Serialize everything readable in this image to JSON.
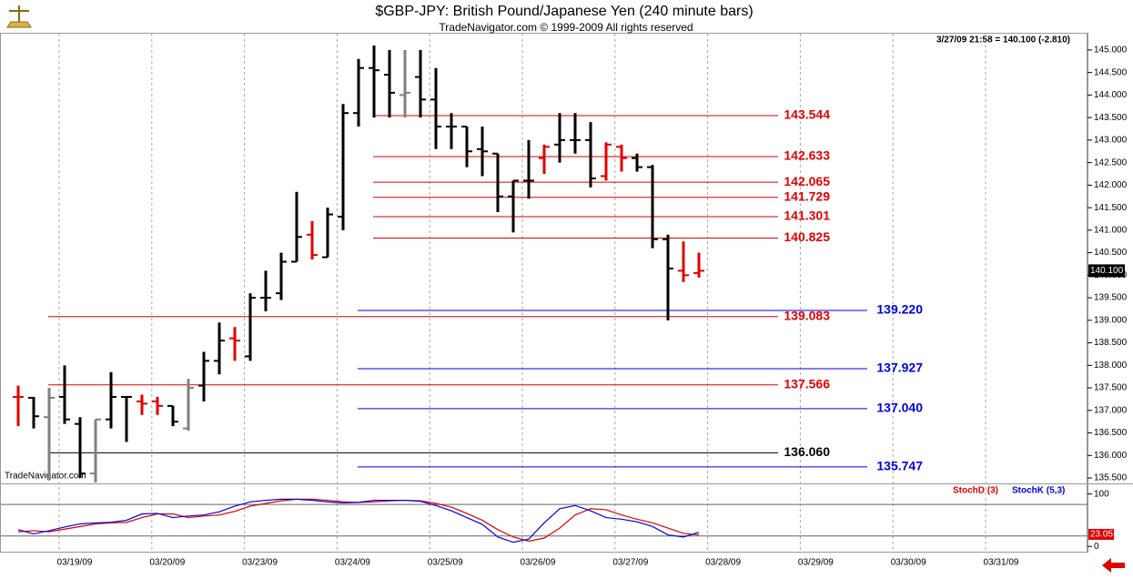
{
  "chart_data": {
    "type": "ohlc",
    "title": "$GBP-JPY:  British Pound/Japanese Yen  (240 minute bars)",
    "subtitle": "TradeNavigator.com © 1999-2009 All rights reserved",
    "info": "3/27/09 21:58 = 140.100 (-2.810)",
    "watermark": "TradeNavigator.com",
    "last_price": {
      "value": 140.1,
      "label": "140.100"
    },
    "categories": [
      "03/19/09",
      "03/20/09",
      "03/23/09",
      "03/24/09",
      "03/25/09",
      "03/26/09",
      "03/27/09",
      "03/28/09",
      "03/29/09",
      "03/30/09",
      "03/31/09"
    ],
    "ylim": [
      135.4,
      145.2
    ],
    "yticks": [
      {
        "value": 135.5,
        "label": "135.500"
      },
      {
        "value": 136,
        "label": "136.000"
      },
      {
        "value": 136.5,
        "label": "136.500"
      },
      {
        "value": 137,
        "label": "137.000"
      },
      {
        "value": 137.5,
        "label": "137.500"
      },
      {
        "value": 138,
        "label": "138.000"
      },
      {
        "value": 138.5,
        "label": "138.500"
      },
      {
        "value": 139,
        "label": "139.000"
      },
      {
        "value": 139.5,
        "label": "139.500"
      },
      {
        "value": 140,
        "label": "140.000"
      },
      {
        "value": 140.5,
        "label": "140.500"
      },
      {
        "value": 141,
        "label": "141.000"
      },
      {
        "value": 141.5,
        "label": "141.500"
      },
      {
        "value": 142,
        "label": "142.000"
      },
      {
        "value": 142.5,
        "label": "142.500"
      },
      {
        "value": 143,
        "label": "143.000"
      },
      {
        "value": 143.5,
        "label": "143.500"
      },
      {
        "value": 144,
        "label": "144.000"
      },
      {
        "value": 144.5,
        "label": "144.500"
      },
      {
        "value": 145,
        "label": "145.000"
      }
    ],
    "bars": {
      "open": [
        137.3,
        137.28,
        136.85,
        137.3,
        136.7,
        135.6,
        136.8,
        137.3,
        137.2,
        137.2,
        137.1,
        136.6,
        137.55,
        138.1,
        138.6,
        138.2,
        139.5,
        139.6,
        140.3,
        140.9,
        140.4,
        141.3,
        143.6,
        144.6,
        144.45,
        144.0,
        144.4,
        143.9,
        143.3,
        143.3,
        142.8,
        142.7,
        141.75,
        142.1,
        142.6,
        142.9,
        143.0,
        143.0,
        142.2,
        142.85,
        142.6,
        142.4,
        140.8,
        140.1,
        140.05
      ],
      "high": [
        137.55,
        137.3,
        137.5,
        138.0,
        136.85,
        136.8,
        137.85,
        137.3,
        137.35,
        137.3,
        137.1,
        137.7,
        138.3,
        138.95,
        138.85,
        139.6,
        140.1,
        140.5,
        141.85,
        141.2,
        141.5,
        143.8,
        144.8,
        145.1,
        145.0,
        145.0,
        145.0,
        144.6,
        143.6,
        143.3,
        143.3,
        142.7,
        142.1,
        143.0,
        142.9,
        143.6,
        143.6,
        143.4,
        142.95,
        142.9,
        142.7,
        142.45,
        140.9,
        140.75,
        140.5
      ],
      "low": [
        136.65,
        136.6,
        135.5,
        136.7,
        135.5,
        135.4,
        136.6,
        136.3,
        136.9,
        136.9,
        136.65,
        136.55,
        137.2,
        137.8,
        138.1,
        138.1,
        139.2,
        139.45,
        140.3,
        140.35,
        140.4,
        141.0,
        143.3,
        143.5,
        143.5,
        143.5,
        143.5,
        142.8,
        142.8,
        142.4,
        142.2,
        141.4,
        140.95,
        141.7,
        142.25,
        142.5,
        142.7,
        141.95,
        142.1,
        142.3,
        142.3,
        140.6,
        139.0,
        139.85,
        139.95
      ],
      "close": [
        137.3,
        136.87,
        137.28,
        136.8,
        135.6,
        136.8,
        137.3,
        137.3,
        137.15,
        137.1,
        136.75,
        137.5,
        138.1,
        138.55,
        138.55,
        139.5,
        139.5,
        140.3,
        140.85,
        140.45,
        141.35,
        143.6,
        144.6,
        144.55,
        144.05,
        144.05,
        143.9,
        143.3,
        143.3,
        142.75,
        142.75,
        141.75,
        142.1,
        142.1,
        142.85,
        143.0,
        143.0,
        142.15,
        142.9,
        142.6,
        142.4,
        140.8,
        140.15,
        140.0,
        140.1
      ],
      "colors": [
        "#e00000",
        "#000000",
        "#808080",
        "#000000",
        "#000000",
        "#808080",
        "#000000",
        "#000000",
        "#e00000",
        "#e00000",
        "#000000",
        "#808080",
        "#000000",
        "#000000",
        "#e00000",
        "#000000",
        "#000000",
        "#000000",
        "#000000",
        "#e00000",
        "#000000",
        "#000000",
        "#000000",
        "#000000",
        "#000000",
        "#808080",
        "#000000",
        "#000000",
        "#000000",
        "#000000",
        "#000000",
        "#000000",
        "#000000",
        "#000000",
        "#e00000",
        "#000000",
        "#000000",
        "#000000",
        "#e00000",
        "#e00000",
        "#000000",
        "#000000",
        "#000000",
        "#e00000",
        "#e00000"
      ]
    },
    "levels": [
      {
        "value": 143.544,
        "color": "#e00000"
      },
      {
        "value": 142.633,
        "color": "#e00000"
      },
      {
        "value": 142.065,
        "color": "#e00000"
      },
      {
        "value": 141.729,
        "color": "#e00000"
      },
      {
        "value": 141.301,
        "color": "#e00000"
      },
      {
        "value": 140.825,
        "color": "#e00000"
      },
      {
        "value": {
          "value": 139.22,
          "label": "139.220"
        },
        "color": "#0000e0"
      },
      {
        "value": 139.083,
        "color": "#e00000"
      },
      {
        "value": 137.927,
        "color": "#0000e0"
      },
      {
        "value": 137.566,
        "color": "#e00000"
      },
      {
        "value": {
          "value": 137.04,
          "label": "137.040"
        },
        "color": "#0000e0"
      },
      {
        "value": {
          "value": 136.06,
          "label": "136.060"
        },
        "color": "#000000"
      },
      {
        "value": 135.747,
        "color": "#0000e0"
      }
    ],
    "indicator": {
      "ylim": [
        -10,
        115
      ],
      "yticks": [
        0,
        100
      ],
      "levels": [
        20,
        80
      ],
      "last_value": 23.05,
      "series": [
        {
          "name": "StochD (3)",
          "color": "#e00000",
          "values": [
            28,
            30,
            28,
            33,
            38,
            43,
            45,
            46,
            55,
            62,
            62,
            55,
            58,
            60,
            67,
            77,
            82,
            87,
            90,
            90,
            88,
            85,
            84,
            85,
            87,
            88,
            87,
            82,
            75,
            63,
            50,
            32,
            18,
            10,
            16,
            35,
            60,
            72,
            70,
            60,
            52,
            45,
            35,
            25,
            22
          ]
        },
        {
          "name": "StochK (5,3)",
          "color": "#0000e0",
          "values": [
            32,
            24,
            30,
            37,
            43,
            45,
            46,
            50,
            62,
            63,
            55,
            58,
            60,
            66,
            77,
            85,
            88,
            90,
            90,
            88,
            85,
            83,
            84,
            88,
            88,
            88,
            86,
            78,
            68,
            55,
            42,
            18,
            8,
            14,
            45,
            72,
            78,
            68,
            55,
            52,
            47,
            38,
            22,
            18,
            27
          ]
        }
      ]
    }
  }
}
